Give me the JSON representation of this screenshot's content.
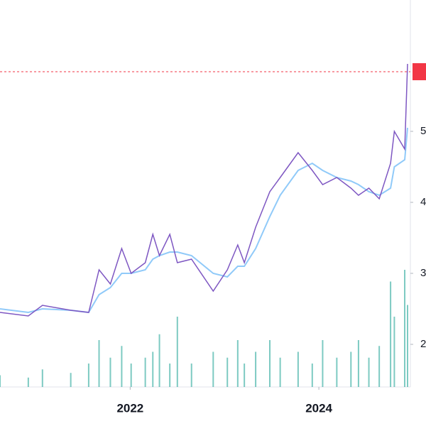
{
  "chart_data": {
    "type": "line",
    "x": [
      2020.62,
      2020.92,
      2021.07,
      2021.37,
      2021.56,
      2021.67,
      2021.79,
      2021.91,
      2022.01,
      2022.16,
      2022.24,
      2022.31,
      2022.42,
      2022.5,
      2022.65,
      2022.88,
      2023.03,
      2023.14,
      2023.21,
      2023.33,
      2023.48,
      2023.59,
      2023.78,
      2023.93,
      2024.04,
      2024.19,
      2024.34,
      2024.42,
      2024.53,
      2024.64,
      2024.76,
      2024.8,
      2024.91,
      2024.94
    ],
    "series": [
      {
        "color": "#7e57c2",
        "values": [
          2.45,
          2.4,
          2.55,
          2.48,
          2.45,
          3.05,
          2.85,
          3.35,
          3.0,
          3.15,
          3.55,
          3.25,
          3.55,
          3.15,
          3.2,
          2.75,
          3.05,
          3.4,
          3.15,
          3.65,
          4.15,
          4.35,
          4.7,
          4.45,
          4.25,
          4.35,
          4.2,
          4.1,
          4.2,
          4.05,
          4.55,
          5.0,
          4.75,
          5.95
        ]
      },
      {
        "color": "#90caf9",
        "values": [
          2.5,
          2.45,
          2.5,
          2.48,
          2.45,
          2.7,
          2.8,
          3.0,
          3.0,
          3.05,
          3.2,
          3.25,
          3.3,
          3.3,
          3.25,
          3.0,
          2.95,
          3.1,
          3.1,
          3.35,
          3.8,
          4.1,
          4.45,
          4.55,
          4.45,
          4.35,
          4.3,
          4.25,
          4.15,
          4.1,
          4.2,
          4.5,
          4.6,
          5.05
        ]
      }
    ],
    "volume": {
      "color": "#26a69a",
      "values": [
        1,
        0.8,
        1.5,
        1.2,
        2,
        4,
        2.5,
        3.5,
        2,
        2.5,
        3,
        4.5,
        2,
        6,
        2,
        3,
        2.5,
        4,
        2,
        3,
        4,
        2.5,
        3,
        2,
        4,
        2.5,
        3,
        4,
        2.5,
        3.5,
        9,
        6,
        10,
        7
      ],
      "vlim": [
        0,
        10
      ]
    },
    "reference_line": {
      "value": 5.84,
      "color": "#f23645"
    },
    "xlim": [
      2020.62,
      2024.97
    ],
    "xticks": [
      2022,
      2024
    ],
    "ylim": [
      1.4,
      6.85
    ],
    "yticks": [
      2,
      3,
      4,
      5
    ]
  }
}
